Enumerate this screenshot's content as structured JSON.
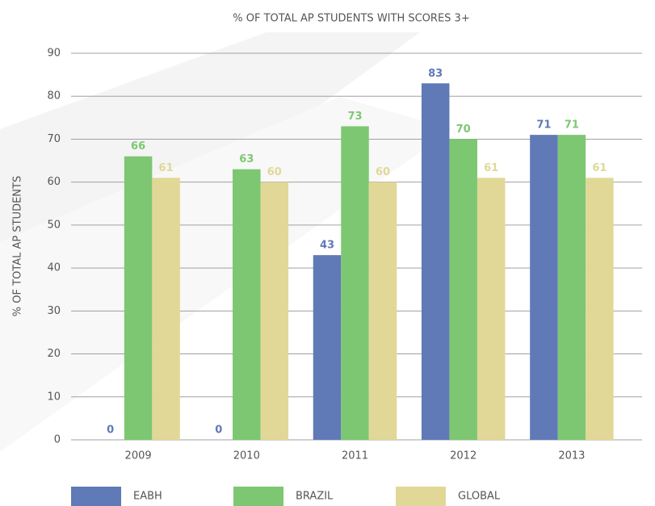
{
  "chart_data": {
    "type": "bar",
    "title": "% OF TOTAL AP STUDENTS WITH SCORES 3+",
    "y_label": "% OF TOTAL AP STUDENTS",
    "categories": [
      "2009",
      "2010",
      "2011",
      "2012",
      "2013"
    ],
    "series": [
      {
        "name": "EABH",
        "color": "#6079b7",
        "values": [
          0,
          0,
          43,
          83,
          71
        ]
      },
      {
        "name": "BRAZIL",
        "color": "#7dc772",
        "values": [
          66,
          63,
          73,
          70,
          71
        ]
      },
      {
        "name": "GLOBAL",
        "color": "#e1d897",
        "values": [
          61,
          60,
          60,
          61,
          61
        ]
      }
    ],
    "ylim": [
      0,
      90
    ],
    "yticks": [
      0,
      10,
      20,
      30,
      40,
      50,
      60,
      70,
      80,
      90
    ],
    "grid": true,
    "legend": "bottom"
  }
}
